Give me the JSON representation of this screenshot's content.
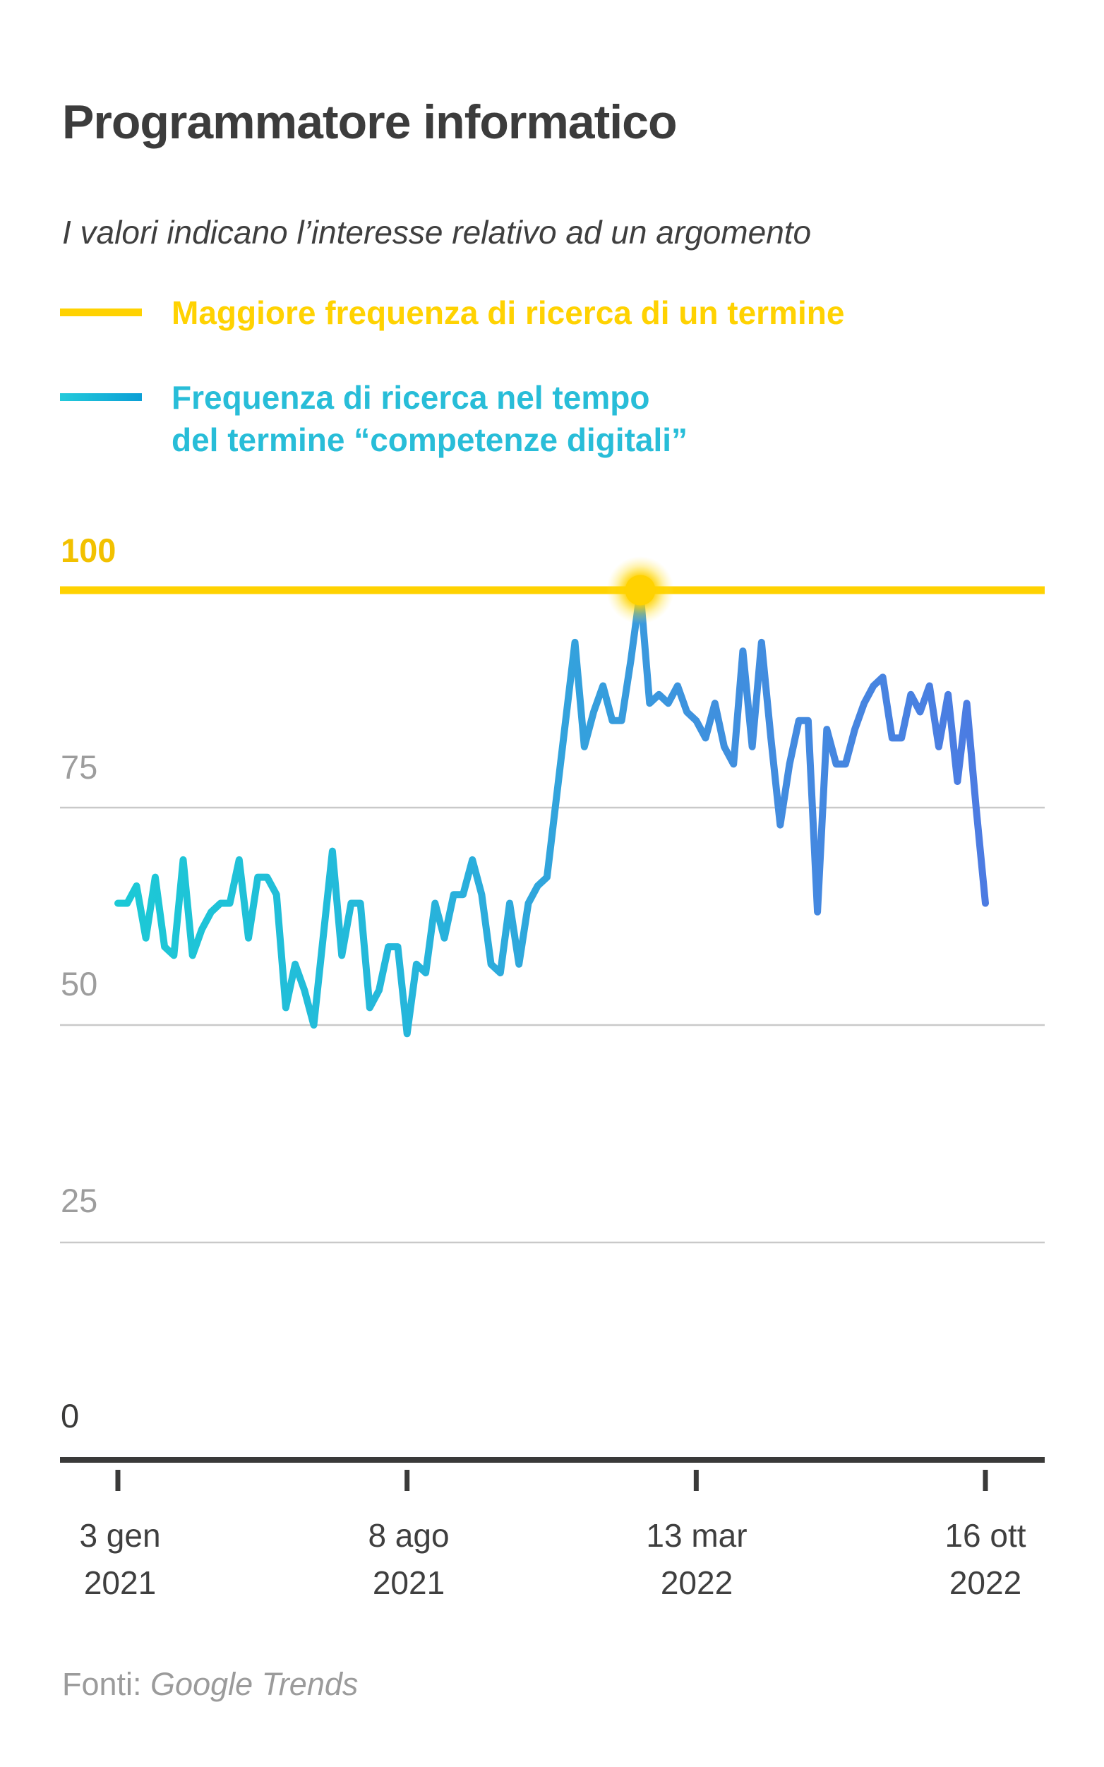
{
  "title": "Programmatore informatico",
  "subtitle": "I valori indicano l’interesse relativo ad un argomento",
  "legend": {
    "item1": {
      "label": "Maggiore frequenza di ricerca di un termine",
      "color": "#FFD201"
    },
    "item2": {
      "label_line1": "Frequenza di ricerca nel tempo",
      "label_line2": "del termine “competenze digitali”",
      "color_start": "#23CADA",
      "color_end": "#0B9FD6"
    }
  },
  "y_axis": {
    "label_100": "100",
    "label_75": "75",
    "label_50": "50",
    "label_25": "25",
    "label_0": "0"
  },
  "x_axis": {
    "ticks": [
      {
        "line1": "3 gen",
        "line2": "2021"
      },
      {
        "line1": "8 ago",
        "line2": "2021"
      },
      {
        "line1": "13 mar",
        "line2": "2022"
      },
      {
        "line1": "16 ott",
        "line2": "2022"
      }
    ]
  },
  "footer": {
    "prefix": "Fonti: ",
    "source": "Google Trends"
  },
  "chart_data": {
    "type": "line",
    "title": "Programmatore informatico",
    "xlabel": "",
    "ylabel": "",
    "ylim": [
      0,
      100
    ],
    "y_ticks": [
      0,
      25,
      50,
      75,
      100
    ],
    "y_gridlines": [
      25,
      50,
      75
    ],
    "x_tick_labels": [
      "3 gen 2021",
      "8 ago 2021",
      "13 mar 2022",
      "16 ott 2022"
    ],
    "grid": true,
    "legend_position": "top-left",
    "reference_line": {
      "value": 100,
      "label": "Maggiore frequenza di ricerca di un termine",
      "color": "#FFD201"
    },
    "max_marker": {
      "value": 100,
      "color": "#FFD201",
      "note": "glowing dot where series touches 100"
    },
    "series": [
      {
        "name": "Frequenza di ricerca nel tempo del termine “competenze digitali”",
        "color_gradient": [
          "#1CC9D6",
          "#25B6DB",
          "#3E92DE",
          "#4C7BE2"
        ],
        "values": [
          64,
          64,
          66,
          60,
          67,
          59,
          58,
          69,
          58,
          61,
          63,
          64,
          64,
          69,
          60,
          67,
          67,
          65,
          52,
          57,
          54,
          50,
          60,
          70,
          58,
          64,
          64,
          52,
          54,
          59,
          59,
          49,
          57,
          56,
          64,
          60,
          65,
          65,
          69,
          65,
          57,
          56,
          64,
          57,
          64,
          66,
          67,
          76,
          85,
          94,
          82,
          86,
          89,
          85,
          85,
          92,
          100,
          87,
          88,
          87,
          89,
          86,
          85,
          83,
          87,
          82,
          80,
          93,
          82,
          94,
          83,
          73,
          80,
          85,
          85,
          63,
          84,
          80,
          80,
          84,
          87,
          89,
          90,
          83,
          83,
          88,
          86,
          89,
          82,
          88,
          78,
          87,
          75,
          64
        ]
      }
    ]
  }
}
